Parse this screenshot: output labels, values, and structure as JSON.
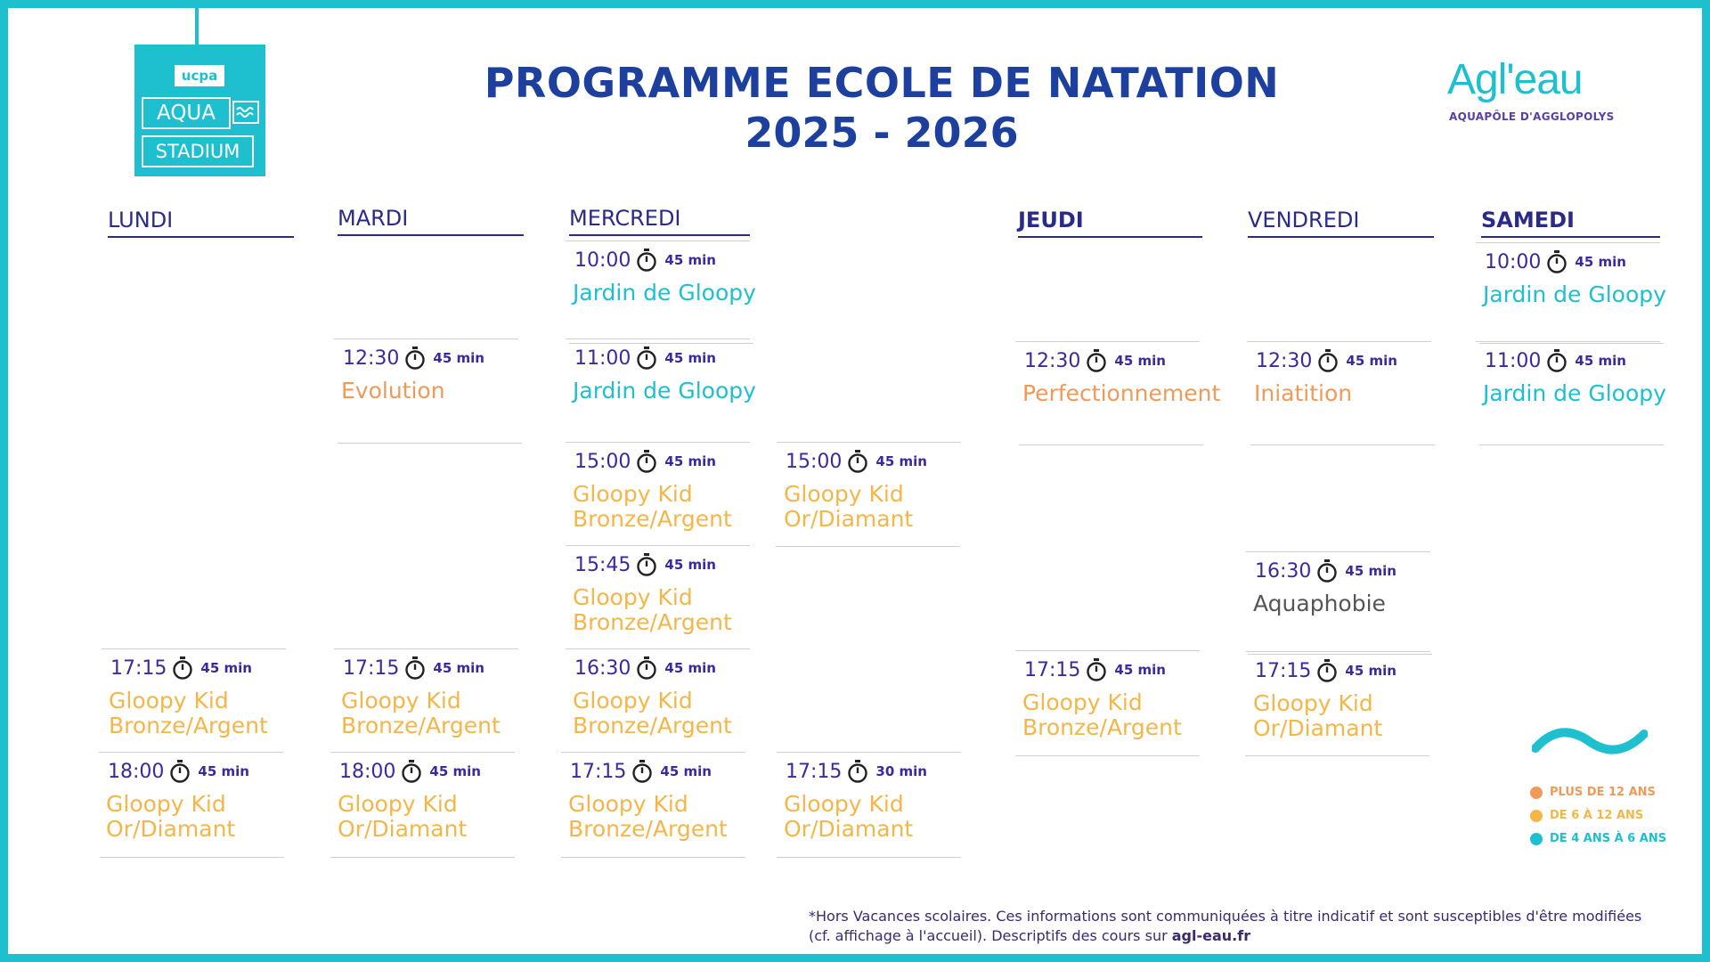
{
  "title_line1": "PROGRAMME ECOLE DE NATATION",
  "title_line2": "2025 - 2026",
  "logo_left": {
    "brand": "ucpa",
    "line1": "AQUA",
    "line2": "STADIUM"
  },
  "logo_right": {
    "name": "Agl'eau",
    "subtitle": "AQUAPÔLE D'AGGLOPOLYS"
  },
  "days": [
    "LUNDI",
    "MARDI",
    "MERCREDI",
    "JEUDI",
    "VENDREDI",
    "SAMEDI"
  ],
  "sessions": [
    {
      "day": "MERCREDI",
      "time": "10:00",
      "duration": "45 min",
      "name": "Jardin de Gloopy",
      "color": "teal"
    },
    {
      "day": "SAMEDI",
      "time": "10:00",
      "duration": "45 min",
      "name": "Jardin de Gloopy",
      "color": "teal"
    },
    {
      "day": "MARDI",
      "time": "12:30",
      "duration": "45 min",
      "name": "Evolution",
      "color": "orange"
    },
    {
      "day": "MERCREDI",
      "time": "11:00",
      "duration": "45 min",
      "name": "Jardin de Gloopy",
      "color": "teal"
    },
    {
      "day": "JEUDI",
      "time": "12:30",
      "duration": "45 min",
      "name": "Perfectionnement",
      "color": "orange"
    },
    {
      "day": "VENDREDI",
      "time": "12:30",
      "duration": "45 min",
      "name": "Iniatition",
      "color": "orange"
    },
    {
      "day": "SAMEDI",
      "time": "11:00",
      "duration": "45 min",
      "name": "Jardin de Gloopy",
      "color": "teal"
    },
    {
      "day": "MERCREDI",
      "time": "15:00",
      "duration": "45 min",
      "name": "Gloopy Kid Bronze/Argent",
      "color": "yellow"
    },
    {
      "day": "MERCREDI",
      "time": "15:00",
      "duration": "45 min",
      "name": "Gloopy Kid Or/Diamant",
      "color": "yellow"
    },
    {
      "day": "MERCREDI",
      "time": "15:45",
      "duration": "45 min",
      "name": "Gloopy Kid Bronze/Argent",
      "color": "yellow"
    },
    {
      "day": "VENDREDI",
      "time": "16:30",
      "duration": "45 min",
      "name": "Aquaphobie",
      "color": "grey"
    },
    {
      "day": "LUNDI",
      "time": "17:15",
      "duration": "45 min",
      "name": "Gloopy Kid Bronze/Argent",
      "color": "yellow"
    },
    {
      "day": "MARDI",
      "time": "17:15",
      "duration": "45 min",
      "name": "Gloopy Kid Bronze/Argent",
      "color": "yellow"
    },
    {
      "day": "MERCREDI",
      "time": "16:30",
      "duration": "45 min",
      "name": "Gloopy Kid Bronze/Argent",
      "color": "yellow"
    },
    {
      "day": "JEUDI",
      "time": "17:15",
      "duration": "45 min",
      "name": "Gloopy Kid Bronze/Argent",
      "color": "yellow"
    },
    {
      "day": "VENDREDI",
      "time": "17:15",
      "duration": "45 min",
      "name": "Gloopy Kid Or/Diamant",
      "color": "yellow"
    },
    {
      "day": "LUNDI",
      "time": "18:00",
      "duration": "45 min",
      "name": "Gloopy Kid Or/Diamant",
      "color": "yellow"
    },
    {
      "day": "MARDI",
      "time": "18:00",
      "duration": "45 min",
      "name": "Gloopy Kid Or/Diamant",
      "color": "yellow"
    },
    {
      "day": "MERCREDI",
      "time": "17:15",
      "duration": "45 min",
      "name": "Gloopy Kid Bronze/Argent",
      "color": "yellow"
    },
    {
      "day": "MERCREDI",
      "time": "17:15",
      "duration": "30 min",
      "name": "Gloopy Kid Or/Diamant",
      "color": "yellow"
    }
  ],
  "legend": [
    {
      "label": "PLUS DE 12 ANS",
      "color": "#f09a5a"
    },
    {
      "label": "DE 6 À 12 ANS",
      "color": "#f4b648"
    },
    {
      "label": "DE 4 ANS À 6 ANS",
      "color": "#1ec0cf"
    }
  ],
  "note": "*Hors Vacances scolaires. Ces informations sont communiquées à titre indicatif et sont susceptibles d'être modifiées (cf. affichage à l'accueil). Descriptifs des cours sur",
  "note_link": "agl-eau.fr",
  "colors": {
    "teal": "#1ec0cf",
    "orange": "#f09a5a",
    "yellow": "#f4b648",
    "navy": "#1d3f9e",
    "purple": "#3b2a9e"
  }
}
